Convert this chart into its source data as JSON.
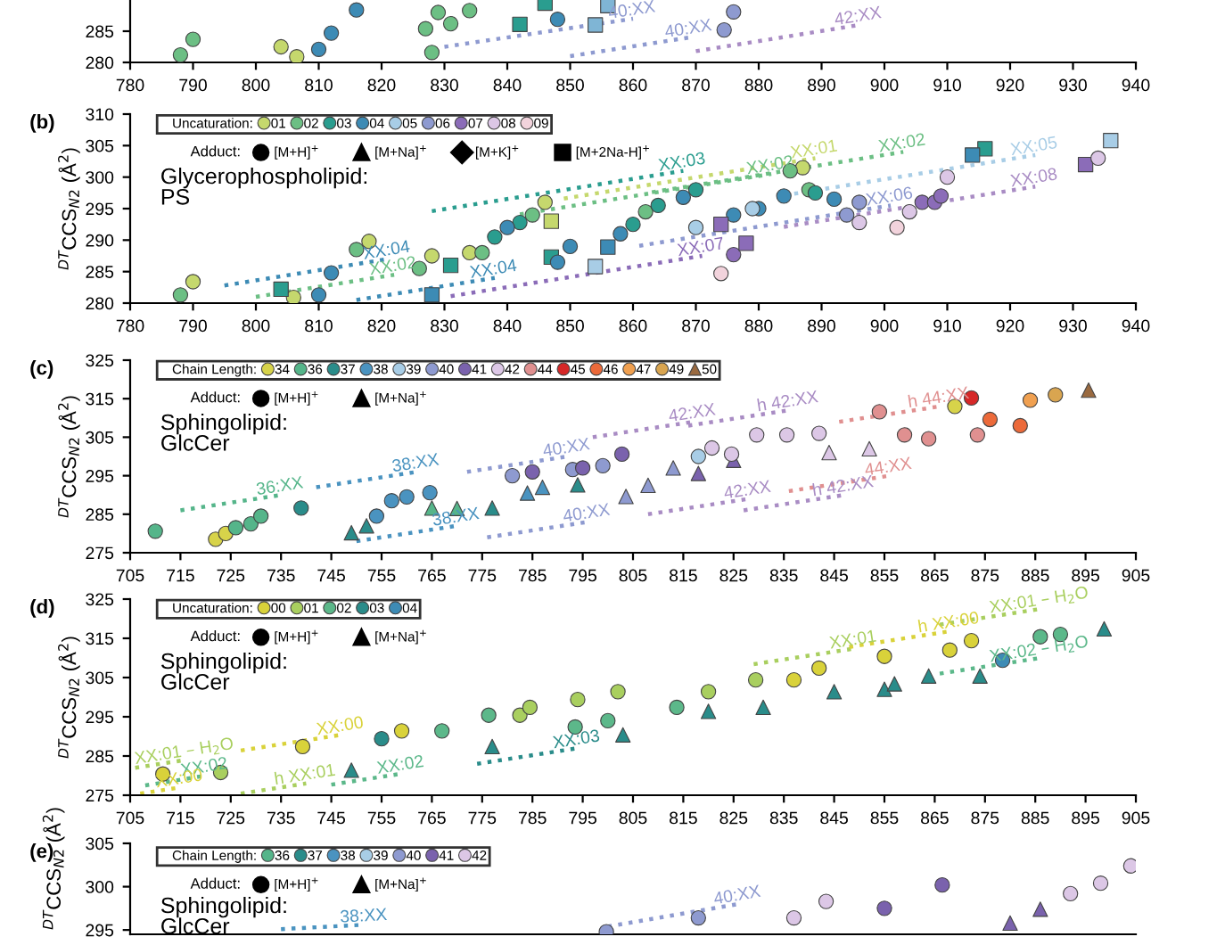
{
  "chart_data": [
    {
      "type": "scatter",
      "xlim": [
        780,
        940
      ],
      "xticks": [
        780,
        790,
        800,
        810,
        820,
        830,
        840,
        850,
        860,
        870,
        880,
        890,
        900,
        910,
        920,
        930,
        940
      ],
      "ylim": [
        280,
        290
      ],
      "yticks": [
        280,
        285
      ],
      "grid": false,
      "series": [
        {
          "color": "#6cbf84",
          "marker": "circle",
          "x": [
            788,
            790,
            827,
            828,
            829,
            831,
            834
          ],
          "values": [
            281.2,
            283.7,
            285.4,
            281.6,
            288,
            286.2,
            288.3
          ]
        },
        {
          "color": "#c5d86d",
          "marker": "circle",
          "x": [
            804,
            806.5
          ],
          "values": [
            282.5,
            280.9
          ]
        },
        {
          "color": "#3d8bb5",
          "marker": "circle",
          "x": [
            810,
            812,
            816,
            848
          ],
          "values": [
            282.1,
            284.7,
            288.4,
            286.9
          ]
        },
        {
          "color": "#2a9d8f",
          "marker": "square",
          "x": [
            842,
            846
          ],
          "values": [
            286.1,
            289.5
          ]
        },
        {
          "color": "#7fb5d5",
          "marker": "square",
          "x": [
            854,
            856
          ],
          "values": [
            286,
            289.1
          ]
        },
        {
          "color": "#8e9ad0",
          "marker": "circle",
          "x": [
            874.5,
            876
          ],
          "values": [
            285.2,
            288.1
          ]
        },
        {
          "type": "line",
          "name": "40:XX",
          "color": "#8e9ad0",
          "line_style": "dotted",
          "x": [
            830,
            860
          ],
          "values": [
            282.5,
            287
          ]
        },
        {
          "type": "line",
          "name": "40:XX",
          "color": "#8e9ad0",
          "line_style": "dotted",
          "x": [
            850,
            869
          ],
          "values": [
            281,
            284
          ]
        },
        {
          "type": "line",
          "name": "42:XX",
          "color": "#a98cc4",
          "line_style": "dotted",
          "x": [
            870,
            896
          ],
          "values": [
            281.8,
            286
          ]
        }
      ]
    },
    {
      "type": "scatter",
      "title": "(b)",
      "ylabel": "$^{DT}$CCS$_{N2}$ (Å$^{2}$)",
      "xlim": [
        780,
        940
      ],
      "xticks": [
        780,
        790,
        800,
        810,
        820,
        830,
        840,
        850,
        860,
        870,
        880,
        890,
        900,
        910,
        920,
        930,
        940
      ],
      "ylim": [
        280,
        310
      ],
      "yticks": [
        280,
        285,
        290,
        295,
        300,
        305,
        310
      ],
      "grid": false,
      "legend": "top left",
      "legend_title": "Uncaturation:",
      "annotations": [
        "Glycerophospholipid:\nPS",
        "Adduct:",
        "[M+H]$^{+}$",
        "[M+Na]$^{+}$",
        "[M+K]$^{+}$",
        "[M+2Na-H]$^{+}$"
      ],
      "series": [
        {
          "name": "01",
          "color": "#c5d86d",
          "marker": "circle",
          "x": [
            790,
            806,
            818,
            828,
            834,
            846,
            887
          ],
          "values": [
            283.4,
            280.9,
            289.8,
            287.5,
            288,
            296,
            301.5
          ]
        },
        {
          "color": "#c5d86d",
          "marker": "square",
          "x": [
            847
          ],
          "values": [
            293
          ]
        },
        {
          "name": "02",
          "color": "#6cbf84",
          "marker": "circle",
          "x": [
            788,
            816,
            826,
            836,
            844,
            862,
            885,
            888
          ],
          "values": [
            281.3,
            288.5,
            285.5,
            288,
            294,
            294.5,
            301,
            298
          ]
        },
        {
          "name": "03",
          "color": "#2a9d8f",
          "marker": "circle",
          "x": [
            838,
            842,
            860,
            864,
            870,
            889
          ],
          "values": [
            290.5,
            292.8,
            292.5,
            295.5,
            298,
            297.5
          ]
        },
        {
          "color": "#2a9d8f",
          "marker": "square",
          "x": [
            804,
            831,
            847,
            916
          ],
          "values": [
            282.2,
            286,
            287.3,
            304.5
          ]
        },
        {
          "name": "04",
          "color": "#3d8bb5",
          "marker": "circle",
          "x": [
            810,
            812,
            840,
            848,
            850,
            858,
            868,
            876,
            880,
            884,
            892
          ],
          "values": [
            281.3,
            284.8,
            292,
            286.5,
            289,
            291,
            296.8,
            294,
            295,
            297,
            296.5
          ]
        },
        {
          "color": "#3d8bb5",
          "marker": "square",
          "x": [
            828,
            856,
            914
          ],
          "values": [
            281.3,
            288.9,
            303.5
          ]
        },
        {
          "name": "05",
          "color": "#a8cde6",
          "marker": "circle",
          "x": [
            870,
            879
          ],
          "values": [
            292,
            295
          ]
        },
        {
          "color": "#a8cde6",
          "marker": "square",
          "x": [
            854,
            936
          ],
          "values": [
            285.8,
            305.8
          ]
        },
        {
          "name": "06",
          "color": "#8e9ad0",
          "marker": "circle",
          "x": [
            894,
            896
          ],
          "values": [
            294,
            296
          ]
        },
        {
          "name": "07",
          "color": "#8b6cb8",
          "marker": "circle",
          "x": [
            876,
            906,
            908,
            909
          ],
          "values": [
            287.7,
            296,
            296,
            297
          ]
        },
        {
          "color": "#8b6cb8",
          "marker": "square",
          "x": [
            874,
            878,
            932
          ],
          "values": [
            292.5,
            289.5,
            302
          ]
        },
        {
          "name": "08",
          "color": "#dcc7e6",
          "marker": "circle",
          "x": [
            896,
            904,
            910,
            934
          ],
          "values": [
            292.8,
            294.5,
            300,
            303
          ]
        },
        {
          "name": "09",
          "color": "#f2d3dc",
          "marker": "circle",
          "x": [
            874,
            902
          ],
          "values": [
            284.7,
            292
          ]
        },
        {
          "type": "line",
          "name": "XX:03",
          "color": "#2a9d8f",
          "line_style": "dotted",
          "x": [
            828,
            868
          ],
          "values": [
            294.6,
            301
          ]
        },
        {
          "type": "line",
          "name": "XX:02",
          "color": "#6cbf84",
          "line_style": "dotted",
          "x": [
            842,
            882
          ],
          "values": [
            294.1,
            300.5
          ]
        },
        {
          "type": "line",
          "name": "XX:01",
          "color": "#c5d86d",
          "line_style": "dotted",
          "x": [
            849,
            889
          ],
          "values": [
            296.6,
            303
          ]
        },
        {
          "type": "line",
          "name": "XX:02",
          "color": "#6cbf84",
          "line_style": "dotted",
          "x": [
            863,
            903
          ],
          "values": [
            297.6,
            304
          ]
        },
        {
          "type": "line",
          "name": "XX:05",
          "color": "#a8cde6",
          "line_style": "dotted",
          "x": [
            884,
            924
          ],
          "values": [
            297.1,
            303.5
          ]
        },
        {
          "type": "line",
          "name": "XX:06",
          "color": "#8e9ad0",
          "line_style": "dotted",
          "x": [
            861,
            901
          ],
          "values": [
            289.1,
            295.5
          ]
        },
        {
          "type": "line",
          "name": "XX:08",
          "color": "#a98cc4",
          "line_style": "dotted",
          "x": [
            884,
            924
          ],
          "values": [
            292.1,
            298.5
          ]
        },
        {
          "type": "line",
          "name": "XX:07",
          "color": "#8b6cb8",
          "line_style": "dotted",
          "x": [
            831,
            871
          ],
          "values": [
            281.1,
            287.5
          ]
        },
        {
          "type": "line",
          "name": "XX:04",
          "color": "#3d8bb5",
          "line_style": "dotted",
          "x": [
            795,
            821
          ],
          "values": [
            282.8,
            287
          ]
        },
        {
          "type": "line",
          "name": "XX:02",
          "color": "#6cbf84",
          "line_style": "dotted",
          "x": [
            800,
            822
          ],
          "values": [
            281,
            284.5
          ]
        },
        {
          "type": "line",
          "name": "XX:04",
          "color": "#3d8bb5",
          "line_style": "dotted",
          "x": [
            816,
            838
          ],
          "values": [
            280.5,
            284
          ]
        }
      ]
    },
    {
      "type": "scatter",
      "title": "(c)",
      "ylabel": "$^{DT}$CCS$_{N2}$ (Å$^{2}$)",
      "xlim": [
        705,
        905
      ],
      "xticks": [
        705,
        715,
        725,
        735,
        745,
        755,
        765,
        775,
        785,
        795,
        805,
        815,
        825,
        835,
        845,
        855,
        865,
        875,
        885,
        895,
        905
      ],
      "ylim": [
        275,
        325
      ],
      "yticks": [
        275,
        285,
        295,
        305,
        315,
        325
      ],
      "grid": false,
      "legend": "top left",
      "legend_title": "Chain Length:",
      "annotations": [
        "Sphingolipid:\nGlcCer",
        "Adduct:",
        "[M+H]$^{+}$",
        "[M+Na]$^{+}$"
      ],
      "series": [
        {
          "name": "34",
          "color": "#d7d34a",
          "marker": "circle",
          "x": [
            722,
            724,
            869
          ],
          "values": [
            278.5,
            280,
            313
          ]
        },
        {
          "name": "36",
          "color": "#55b58a",
          "marker": "circle",
          "x": [
            710,
            726,
            729,
            731
          ],
          "values": [
            280.6,
            281.5,
            282.5,
            284.5
          ]
        },
        {
          "color": "#55b58a",
          "marker": "triangle",
          "x": [
            765,
            770
          ],
          "values": [
            286.6,
            286.5
          ]
        },
        {
          "name": "37",
          "color": "#2a8c8a",
          "marker": "circle",
          "x": [
            739
          ],
          "values": [
            286.6
          ]
        },
        {
          "color": "#2a8c8a",
          "marker": "triangle",
          "x": [
            749,
            752,
            777,
            794
          ],
          "values": [
            280.2,
            282,
            286.6,
            292.6
          ]
        },
        {
          "name": "38",
          "color": "#4a93c0",
          "marker": "circle",
          "x": [
            754,
            757,
            760,
            764.6
          ],
          "values": [
            284.5,
            288.5,
            289.5,
            290.6
          ]
        },
        {
          "color": "#4a93c0",
          "marker": "triangle",
          "x": [
            784,
            787
          ],
          "values": [
            290.5,
            292
          ]
        },
        {
          "name": "39",
          "color": "#a8cde6",
          "marker": "circle",
          "x": [
            818
          ],
          "values": [
            300
          ]
        },
        {
          "name": "40",
          "color": "#8e9ad0",
          "marker": "circle",
          "x": [
            781,
            793,
            799
          ],
          "values": [
            295,
            296.6,
            297.6
          ]
        },
        {
          "color": "#8e9ad0",
          "marker": "triangle",
          "x": [
            803.6,
            808,
            813
          ],
          "values": [
            289.6,
            292.5,
            297
          ]
        },
        {
          "name": "41",
          "color": "#7a62ad",
          "marker": "circle",
          "x": [
            785,
            795,
            802.8
          ],
          "values": [
            296,
            297,
            300.6
          ]
        },
        {
          "color": "#7a62ad",
          "marker": "triangle",
          "x": [
            818,
            825
          ],
          "values": [
            295.6,
            299
          ]
        },
        {
          "name": "42",
          "color": "#dcc7e6",
          "marker": "circle",
          "x": [
            820.7,
            824.6,
            829.6,
            835.6,
            842
          ],
          "values": [
            302.2,
            300.6,
            305.6,
            305.6,
            306
          ]
        },
        {
          "color": "#dcc7e6",
          "marker": "triangle",
          "x": [
            844,
            852
          ],
          "values": [
            301,
            302
          ]
        },
        {
          "name": "44",
          "color": "#e09090",
          "marker": "circle",
          "x": [
            854,
            859,
            863.8,
            873.5
          ],
          "values": [
            311.6,
            305.6,
            304.6,
            305.6
          ]
        },
        {
          "name": "45",
          "color": "#d62828",
          "marker": "circle",
          "x": [
            872.3
          ],
          "values": [
            315.2
          ]
        },
        {
          "name": "46",
          "color": "#ec6a3a",
          "marker": "circle",
          "x": [
            876,
            882
          ],
          "values": [
            309.6,
            308
          ]
        },
        {
          "name": "47",
          "color": "#f0a050",
          "marker": "circle",
          "x": [
            884
          ],
          "values": [
            314.6
          ]
        },
        {
          "name": "49",
          "color": "#d9a550",
          "marker": "circle",
          "x": [
            889
          ],
          "values": [
            316
          ]
        },
        {
          "name": "50",
          "color": "#9a6a40",
          "marker": "triangle",
          "x": [
            895.6
          ],
          "values": [
            317.2
          ]
        },
        {
          "type": "line",
          "name": "36:XX",
          "color": "#55b58a",
          "line_style": "dotted",
          "x": [
            715,
            735
          ],
          "values": [
            286,
            290
          ]
        },
        {
          "type": "line",
          "name": "38:XX",
          "color": "#4a93c0",
          "line_style": "dotted",
          "x": [
            742,
            762
          ],
          "values": [
            292,
            296
          ]
        },
        {
          "type": "line",
          "name": "38:XX",
          "color": "#4a93c0",
          "line_style": "dotted",
          "x": [
            750,
            770
          ],
          "values": [
            278,
            282
          ]
        },
        {
          "type": "line",
          "name": "40:XX",
          "color": "#8e9ad0",
          "line_style": "dotted",
          "x": [
            772,
            792
          ],
          "values": [
            296,
            300
          ]
        },
        {
          "type": "line",
          "name": "40:XX",
          "color": "#8e9ad0",
          "line_style": "dotted",
          "x": [
            776,
            796
          ],
          "values": [
            279,
            283
          ]
        },
        {
          "type": "line",
          "name": "42:XX",
          "color": "#a98cc4",
          "line_style": "dotted",
          "x": [
            797,
            817
          ],
          "values": [
            305,
            309
          ]
        },
        {
          "type": "line",
          "name": "42:XX",
          "color": "#a98cc4",
          "line_style": "dotted",
          "x": [
            808,
            828
          ],
          "values": [
            285,
            289
          ]
        },
        {
          "type": "line",
          "name": "h 42:XX",
          "color": "#a98cc4",
          "line_style": "dotted",
          "x": [
            816,
            836
          ],
          "values": [
            308,
            312
          ]
        },
        {
          "type": "line",
          "name": "h 42:XX",
          "color": "#a98cc4",
          "line_style": "dotted",
          "x": [
            827,
            847
          ],
          "values": [
            286,
            290
          ]
        },
        {
          "type": "line",
          "name": "44:XX",
          "color": "#e09090",
          "line_style": "dotted",
          "x": [
            836,
            856
          ],
          "values": [
            291,
            295
          ]
        },
        {
          "type": "line",
          "name": "h 44:XX",
          "color": "#e09090",
          "line_style": "dotted",
          "x": [
            846,
            866
          ],
          "values": [
            309,
            313
          ]
        }
      ]
    },
    {
      "type": "scatter",
      "title": "(d)",
      "ylabel": "$^{DT}$CCS$_{N2}$ (Å$^{2}$)",
      "xlim": [
        705,
        905
      ],
      "xticks": [
        705,
        715,
        725,
        735,
        745,
        755,
        765,
        775,
        785,
        795,
        805,
        815,
        825,
        835,
        845,
        855,
        865,
        875,
        885,
        895,
        905
      ],
      "ylim": [
        275,
        325
      ],
      "yticks": [
        275,
        285,
        295,
        305,
        315,
        325
      ],
      "grid": false,
      "legend": "top left",
      "legend_title": "Uncaturation:",
      "annotations": [
        "Sphingolipid:\nGlcCer",
        "Adduct:",
        "[M+H]$^{+}$",
        "[M+Na]$^{+}$"
      ],
      "series": [
        {
          "name": "00",
          "color": "#d9d23a",
          "marker": "circle",
          "x": [
            711.5,
            739.3,
            759,
            837,
            842,
            855,
            868,
            872.3
          ],
          "values": [
            280.4,
            287.4,
            291.4,
            304.4,
            307.4,
            310.4,
            312,
            314.4
          ]
        },
        {
          "name": "01",
          "color": "#a9cf5f",
          "marker": "circle",
          "x": [
            723,
            782.5,
            784.5,
            794,
            802,
            820,
            829.4
          ],
          "values": [
            280.8,
            295.4,
            297.4,
            299.4,
            301.4,
            301.4,
            304.4
          ]
        },
        {
          "name": "02",
          "color": "#5cb88a",
          "marker": "circle",
          "x": [
            767,
            776.3,
            793.5,
            800,
            813.7,
            886,
            890
          ],
          "values": [
            291.4,
            295.4,
            292.4,
            294,
            297.4,
            315.4,
            316
          ]
        },
        {
          "name": "03",
          "color": "#2a8c8a",
          "marker": "circle",
          "x": [
            755
          ],
          "values": [
            289.4
          ]
        },
        {
          "color": "#2a8c8a",
          "marker": "triangle",
          "x": [
            749,
            777,
            803,
            820,
            830.9,
            845,
            855,
            857,
            863.8,
            874,
            898.7
          ],
          "values": [
            281.4,
            287.4,
            290.4,
            296.4,
            297.4,
            301.4,
            302,
            303.4,
            305.4,
            305.4,
            317.4
          ]
        },
        {
          "name": "04",
          "color": "#3d8bb5",
          "marker": "circle",
          "x": [
            878.5
          ],
          "values": [
            309.4
          ]
        },
        {
          "type": "line",
          "name": "XX:01 – H$_{2}$O",
          "color": "#a9cf5f",
          "line_style": "dotted",
          "x": [
            706,
            716
          ],
          "values": [
            282,
            284
          ]
        },
        {
          "type": "line",
          "name": "XX:00",
          "color": "#d9d23a",
          "line_style": "dotted",
          "x": [
            727,
            747
          ],
          "values": [
            286.4,
            290.4
          ]
        },
        {
          "type": "line",
          "name": "XX:03",
          "color": "#2a8c8a",
          "line_style": "dotted",
          "x": [
            774,
            794
          ],
          "values": [
            283,
            287
          ]
        },
        {
          "type": "line",
          "name": "XX:01",
          "color": "#a9cf5f",
          "line_style": "dotted",
          "x": [
            829,
            849
          ],
          "values": [
            308.4,
            312.4
          ]
        },
        {
          "type": "line",
          "name": "h XX:00",
          "color": "#d9d23a",
          "line_style": "dotted",
          "x": [
            848,
            868
          ],
          "values": [
            312.8,
            316.8
          ]
        },
        {
          "type": "line",
          "name": "XX:01 – H$_{2}$O",
          "color": "#a9cf5f",
          "line_style": "dotted",
          "x": [
            866,
            886
          ],
          "values": [
            318.5,
            322.5
          ]
        },
        {
          "type": "line",
          "name": "XX:02 – H$_{2}$O",
          "color": "#5cb88a",
          "line_style": "dotted",
          "x": [
            866,
            886
          ],
          "values": [
            306,
            310
          ]
        },
        {
          "type": "line",
          "name": "XX:02",
          "color": "#5cb88a",
          "line_style": "dotted",
          "x": [
            708,
            720
          ],
          "values": [
            277.5,
            280
          ]
        },
        {
          "type": "line",
          "name": "XX:00",
          "color": "#d9d23a",
          "line_style": "dotted",
          "x": [
            707,
            715
          ],
          "values": [
            275.4,
            277
          ]
        },
        {
          "type": "line",
          "name": "h XX:01",
          "color": "#a9cf5f",
          "line_style": "dotted",
          "x": [
            727,
            740
          ],
          "values": [
            275.4,
            278
          ]
        },
        {
          "type": "line",
          "name": "XX:02",
          "color": "#5cb88a",
          "line_style": "dotted",
          "x": [
            745,
            759
          ],
          "values": [
            277.7,
            280.5
          ]
        }
      ]
    },
    {
      "type": "scatter",
      "title": "(e)",
      "ylabel": "$^{DT}$CCS$_{N2}$ (Å$^{2}$)",
      "xlim": [
        705,
        905
      ],
      "ylim": [
        294.5,
        305
      ],
      "yticks": [
        295,
        300,
        305
      ],
      "tick_labels": "y",
      "grid": false,
      "legend": "top left",
      "legend_title": "Chain Length:",
      "annotations": [
        "Sphingolipid:\nGlcCer",
        "Adduct:",
        "[M+H]$^{+}$",
        "[M+Na]$^{+}$"
      ],
      "series": [
        {
          "name": "36",
          "color": "#55b58a"
        },
        {
          "name": "37",
          "color": "#2a8c8a"
        },
        {
          "name": "38",
          "color": "#4a93c0"
        },
        {
          "name": "39",
          "color": "#a8cde6"
        },
        {
          "name": "40",
          "color": "#8e9ad0",
          "marker": "circle",
          "x": [
            799.7,
            818
          ],
          "values": [
            294.8,
            296.4
          ]
        },
        {
          "name": "41",
          "color": "#7a62ad",
          "marker": "circle",
          "x": [
            855,
            866.5
          ],
          "values": [
            297.5,
            300.2
          ]
        },
        {
          "color": "#7a62ad",
          "marker": "triangle",
          "x": [
            880,
            886
          ],
          "values": [
            295.8,
            297.4
          ]
        },
        {
          "name": "42",
          "color": "#dcc7e6",
          "marker": "circle",
          "x": [
            837,
            843.4,
            892,
            898,
            904
          ],
          "values": [
            296.4,
            298.3,
            299.2,
            300.4,
            302.4
          ]
        },
        {
          "type": "line",
          "name": "38:XX",
          "color": "#4a93c0",
          "line_style": "dotted",
          "x": [
            735,
            751.5
          ],
          "values": [
            295.1,
            295.6
          ]
        },
        {
          "type": "line",
          "name": "40:XX",
          "color": "#8e9ad0",
          "line_style": "dotted",
          "x": [
            800,
            826
          ],
          "values": [
            295.4,
            298
          ]
        }
      ]
    }
  ]
}
